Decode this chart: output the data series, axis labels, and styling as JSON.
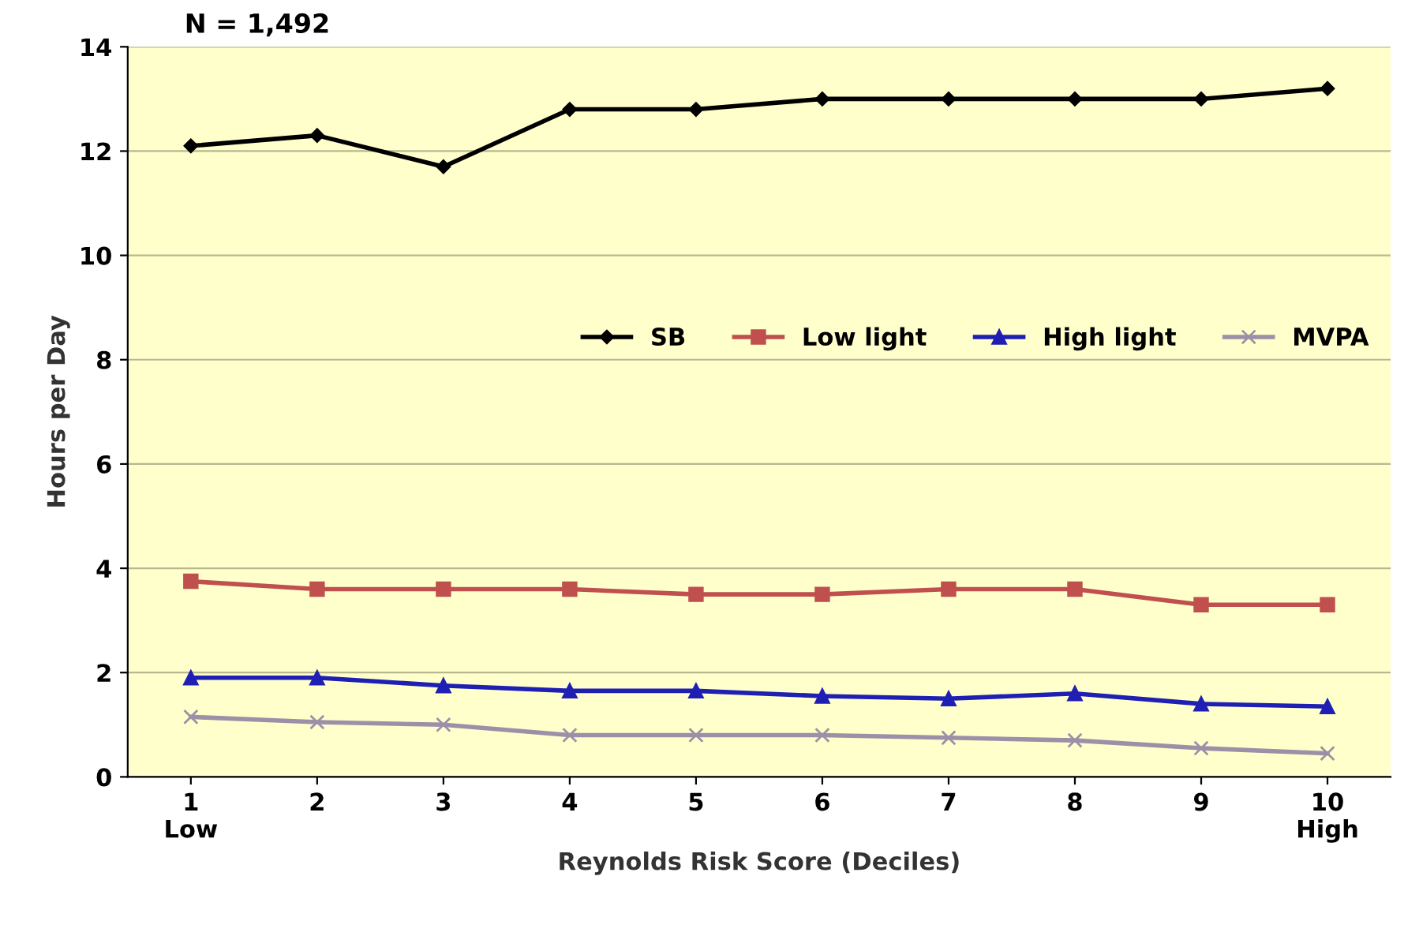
{
  "chart_data": {
    "type": "line",
    "title": "N = 1,492",
    "xlabel": "Reynolds Risk Score (Deciles)",
    "ylabel": "Hours per Day",
    "categories": [
      "1\nLow",
      "2",
      "3",
      "4",
      "5",
      "6",
      "7",
      "8",
      "9",
      "10\nHigh"
    ],
    "ylim": [
      0,
      14
    ],
    "yticks": [
      0,
      2,
      4,
      6,
      8,
      10,
      12,
      14
    ],
    "grid": "y",
    "legend": "center right",
    "series": [
      {
        "name": "SB",
        "color": "#000000",
        "marker": "diamond",
        "values": [
          12.1,
          12.3,
          11.7,
          12.8,
          12.8,
          13.0,
          13.0,
          13.0,
          13.0,
          13.2
        ]
      },
      {
        "name": "Low light",
        "color": "#c0504d",
        "marker": "square",
        "values": [
          3.75,
          3.6,
          3.6,
          3.6,
          3.5,
          3.5,
          3.6,
          3.6,
          3.3,
          3.3
        ]
      },
      {
        "name": "High light",
        "color": "#1f1fb4",
        "marker": "triangle",
        "values": [
          1.9,
          1.9,
          1.75,
          1.65,
          1.65,
          1.55,
          1.5,
          1.6,
          1.4,
          1.35
        ]
      },
      {
        "name": "MVPA",
        "color": "#9e8fa8",
        "marker": "cross",
        "values": [
          1.15,
          1.05,
          1.0,
          0.8,
          0.8,
          0.8,
          0.75,
          0.7,
          0.55,
          0.45
        ]
      }
    ]
  }
}
